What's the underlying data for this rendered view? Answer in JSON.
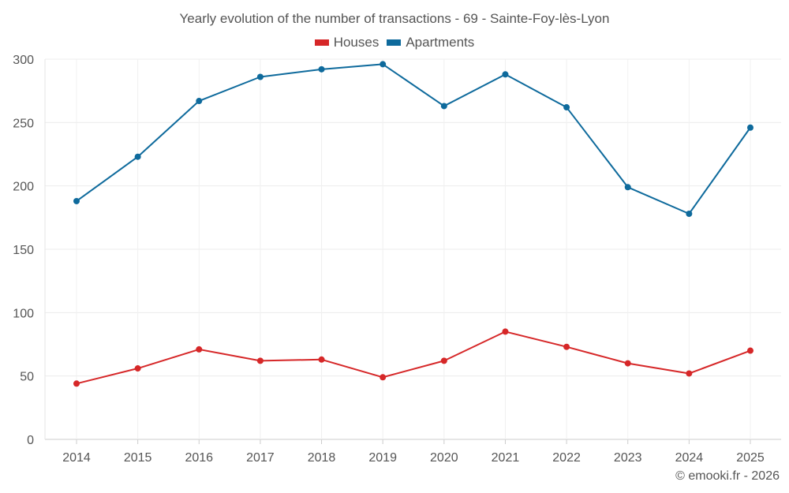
{
  "chart_data": {
    "type": "line",
    "title": "Yearly evolution of the number of transactions - 69 - Sainte-Foy-lès-Lyon",
    "categories": [
      "2014",
      "2015",
      "2016",
      "2017",
      "2018",
      "2019",
      "2020",
      "2021",
      "2022",
      "2023",
      "2024",
      "2025"
    ],
    "series": [
      {
        "name": "Houses",
        "color": "#d62728",
        "values": [
          44,
          56,
          71,
          62,
          63,
          49,
          62,
          85,
          73,
          60,
          52,
          70
        ]
      },
      {
        "name": "Apartments",
        "color": "#0e6a9c",
        "values": [
          188,
          223,
          267,
          286,
          292,
          296,
          263,
          288,
          262,
          199,
          178,
          246
        ]
      }
    ],
    "ylim": [
      0,
      300
    ],
    "yticks": [
      0,
      50,
      100,
      150,
      200,
      250,
      300
    ],
    "xlabel": "",
    "ylabel": "",
    "grid": true,
    "legend_position": "top-center"
  },
  "footer": {
    "credit": "© emooki.fr - 2026"
  }
}
